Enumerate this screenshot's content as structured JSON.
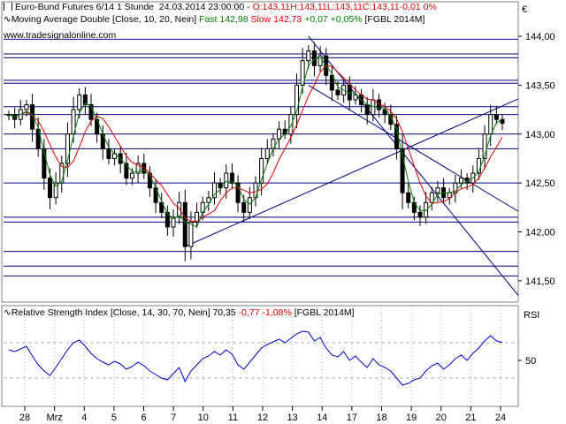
{
  "header": {
    "line1_prefix": "Euro-Bund Futures 6/14 1 Stunde",
    "line1_datetime": "24.03.2014 23:00:00",
    "line1_open": "O:143,11",
    "line1_high": "H:143,11",
    "line1_low": "L:143,11",
    "line1_close": "C:143,11",
    "line1_change": "-0,01 0%",
    "line2_prefix": "Moving Average Double [Close, 10, 20, Nein]",
    "line2_fast": "Fast 142,98",
    "line2_slow": "Slow 142,73",
    "line2_change": "+0,07 +0,05%",
    "line2_symbol": "[FGBL 2014M]",
    "watermark": "www.tradesignalonline.com",
    "currency": "€"
  },
  "rsi_header": {
    "label": "Relative Strength Index [Close, 14, 30, 70, Nein]",
    "value": "70,35",
    "change": "-0,77 -1,08%",
    "symbol": "[FGBL 2014M]",
    "axis_title": "RSI"
  },
  "colors": {
    "price": "#000000",
    "fast_ma": "#008000",
    "slow_ma": "#e00000",
    "support_lines": "#000080",
    "grid": "#b0b0b0",
    "rsi": "#0000cc",
    "red_text": "#e00000",
    "green_text": "#008000"
  },
  "chart_data": [
    {
      "type": "candlestick",
      "title": "Euro-Bund Futures 6/14 1 Stunde",
      "ylim": [
        141.3,
        144.1
      ],
      "yticks": [
        "144,00",
        "143,50",
        "143,00",
        "142,50",
        "142,00",
        "141,50"
      ],
      "ytick_values": [
        144.0,
        143.5,
        143.0,
        142.5,
        142.0,
        141.5
      ],
      "xticks": [
        "28",
        "Mrz",
        "4",
        "5",
        "6",
        "7",
        "10",
        "11",
        "12",
        "13",
        "14",
        "17",
        "18",
        "19",
        "20",
        "21",
        "24"
      ],
      "horizontal_levels": [
        143.97,
        143.82,
        143.78,
        143.55,
        143.52,
        143.28,
        143.2,
        143.0,
        142.85,
        142.5,
        142.15,
        142.1,
        141.8,
        141.65,
        141.55
      ],
      "series": [
        {
          "name": "Close",
          "values": [
            143.2,
            143.15,
            143.25,
            143.3,
            143.05,
            142.85,
            142.55,
            142.35,
            142.5,
            142.7,
            143.0,
            143.25,
            143.4,
            143.3,
            143.15,
            143.0,
            142.85,
            142.75,
            142.8,
            142.7,
            142.55,
            142.6,
            142.7,
            142.6,
            142.45,
            142.3,
            142.2,
            142.05,
            142.15,
            142.3,
            141.85,
            142.1,
            142.2,
            142.3,
            142.35,
            142.5,
            142.45,
            142.6,
            142.5,
            142.3,
            142.2,
            142.35,
            142.5,
            142.75,
            142.85,
            142.95,
            143.05,
            143.0,
            143.2,
            143.5,
            143.75,
            143.85,
            143.7,
            143.8,
            143.6,
            143.45,
            143.4,
            143.5,
            143.35,
            143.4,
            143.3,
            143.2,
            143.35,
            143.25,
            143.2,
            143.1,
            142.85,
            142.4,
            142.3,
            142.2,
            142.15,
            142.3,
            142.4,
            142.45,
            142.35,
            142.4,
            142.5,
            142.55,
            142.5,
            142.6,
            142.75,
            143.0,
            143.2,
            143.15,
            143.11
          ]
        },
        {
          "name": "Fast",
          "value_text": "142,98"
        },
        {
          "name": "Slow",
          "value_text": "142,73"
        }
      ]
    },
    {
      "type": "line",
      "title": "Relative Strength Index [Close, 14, 30, 70, Nein]",
      "ylim": [
        0,
        100
      ],
      "yticks": [
        "50"
      ],
      "ytick_values": [
        50
      ],
      "guide_levels": [
        70,
        30
      ],
      "series": [
        {
          "name": "RSI",
          "values": [
            62,
            60,
            63,
            66,
            55,
            45,
            38,
            33,
            42,
            52,
            62,
            70,
            73,
            66,
            58,
            52,
            48,
            45,
            49,
            46,
            40,
            43,
            48,
            44,
            38,
            34,
            30,
            28,
            35,
            42,
            26,
            38,
            45,
            52,
            55,
            60,
            56,
            62,
            57,
            45,
            40,
            48,
            56,
            64,
            68,
            71,
            74,
            70,
            75,
            80,
            83,
            82,
            72,
            76,
            64,
            56,
            54,
            60,
            50,
            55,
            48,
            42,
            52,
            45,
            42,
            38,
            30,
            22,
            24,
            28,
            30,
            38,
            44,
            47,
            40,
            45,
            52,
            56,
            50,
            58,
            64,
            72,
            78,
            72,
            70.35
          ]
        }
      ]
    }
  ]
}
